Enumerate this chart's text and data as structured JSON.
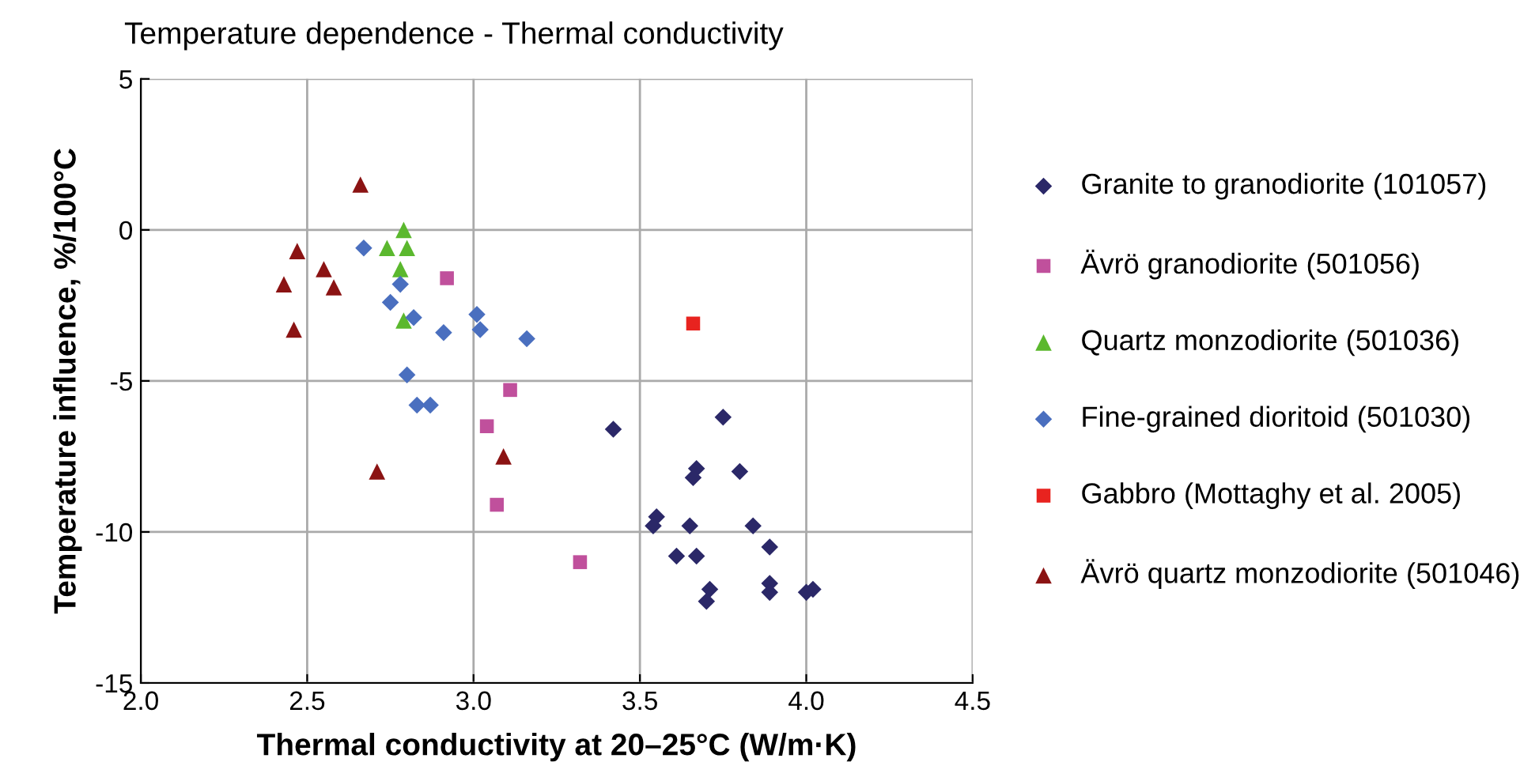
{
  "chart_data": {
    "type": "scatter",
    "title": "Temperature dependence - Thermal conductivity",
    "xlabel": "Thermal conductivity at 20–25°C (W/m·K)",
    "ylabel": "Temperature influence, %/100°C",
    "xlim": [
      2.0,
      4.5
    ],
    "xticks": [
      {
        "value": 2.0,
        "label": "2.0"
      },
      {
        "value": 2.5,
        "label": "2.5"
      },
      {
        "value": 3.0,
        "label": "3.0"
      },
      {
        "value": 3.5,
        "label": "3.5"
      },
      {
        "value": 4.0,
        "label": "4.0"
      },
      {
        "value": 4.5,
        "label": "4.5"
      }
    ],
    "ylim": [
      -15,
      5
    ],
    "yticks": [
      -15,
      -10,
      -5,
      0,
      5
    ],
    "grid": true,
    "legend": "right",
    "series": [
      {
        "name": "Granite to granodiorite (101057)",
        "color": "#2b2868",
        "marker": "diamond",
        "x": [
          3.42,
          3.75,
          3.55,
          3.54,
          3.67,
          3.66,
          3.8,
          3.84,
          3.65,
          3.61,
          3.67,
          3.89,
          3.71,
          3.7,
          3.89,
          3.89,
          4.0,
          4.02
        ],
        "values": [
          -6.6,
          -6.2,
          -9.5,
          -9.8,
          -7.9,
          -8.2,
          -8.0,
          -9.8,
          -9.8,
          -10.8,
          -10.8,
          -10.5,
          -11.9,
          -12.3,
          -11.7,
          -12.0,
          -12.0,
          -11.9
        ]
      },
      {
        "name": "Ävrö granodiorite (501056)",
        "color": "#c0509c",
        "marker": "square",
        "x": [
          2.92,
          3.11,
          3.04,
          3.07,
          3.32
        ],
        "values": [
          -1.6,
          -5.3,
          -6.5,
          -9.1,
          -11.0
        ]
      },
      {
        "name": "Quartz monzodiorite (501036)",
        "color": "#5bb82e",
        "marker": "triangle",
        "x": [
          2.79,
          2.74,
          2.8,
          2.78,
          2.79
        ],
        "values": [
          0.0,
          -0.6,
          -0.6,
          -1.3,
          -3.0
        ]
      },
      {
        "name": "Fine-grained dioritoid (501030)",
        "color": "#4a6fbf",
        "marker": "diamond",
        "x": [
          2.67,
          2.78,
          2.75,
          2.82,
          2.91,
          3.01,
          3.02,
          3.16,
          2.8,
          2.83,
          2.87
        ],
        "values": [
          -0.6,
          -1.8,
          -2.4,
          -2.9,
          -3.4,
          -2.8,
          -3.3,
          -3.6,
          -4.8,
          -5.8,
          -5.8
        ]
      },
      {
        "name": "Gabbro (Mottaghy et al. 2005)",
        "color": "#e8231f",
        "marker": "square",
        "x": [
          3.66
        ],
        "values": [
          -3.1
        ]
      },
      {
        "name": "Ävrö quartz monzodiorite (501046)",
        "color": "#8b1313",
        "marker": "triangle",
        "x": [
          2.66,
          2.47,
          2.43,
          2.55,
          2.58,
          2.46,
          2.71,
          3.09
        ],
        "values": [
          1.5,
          -0.7,
          -1.8,
          -1.3,
          -1.9,
          -3.3,
          -8.0,
          -7.5
        ]
      }
    ]
  }
}
